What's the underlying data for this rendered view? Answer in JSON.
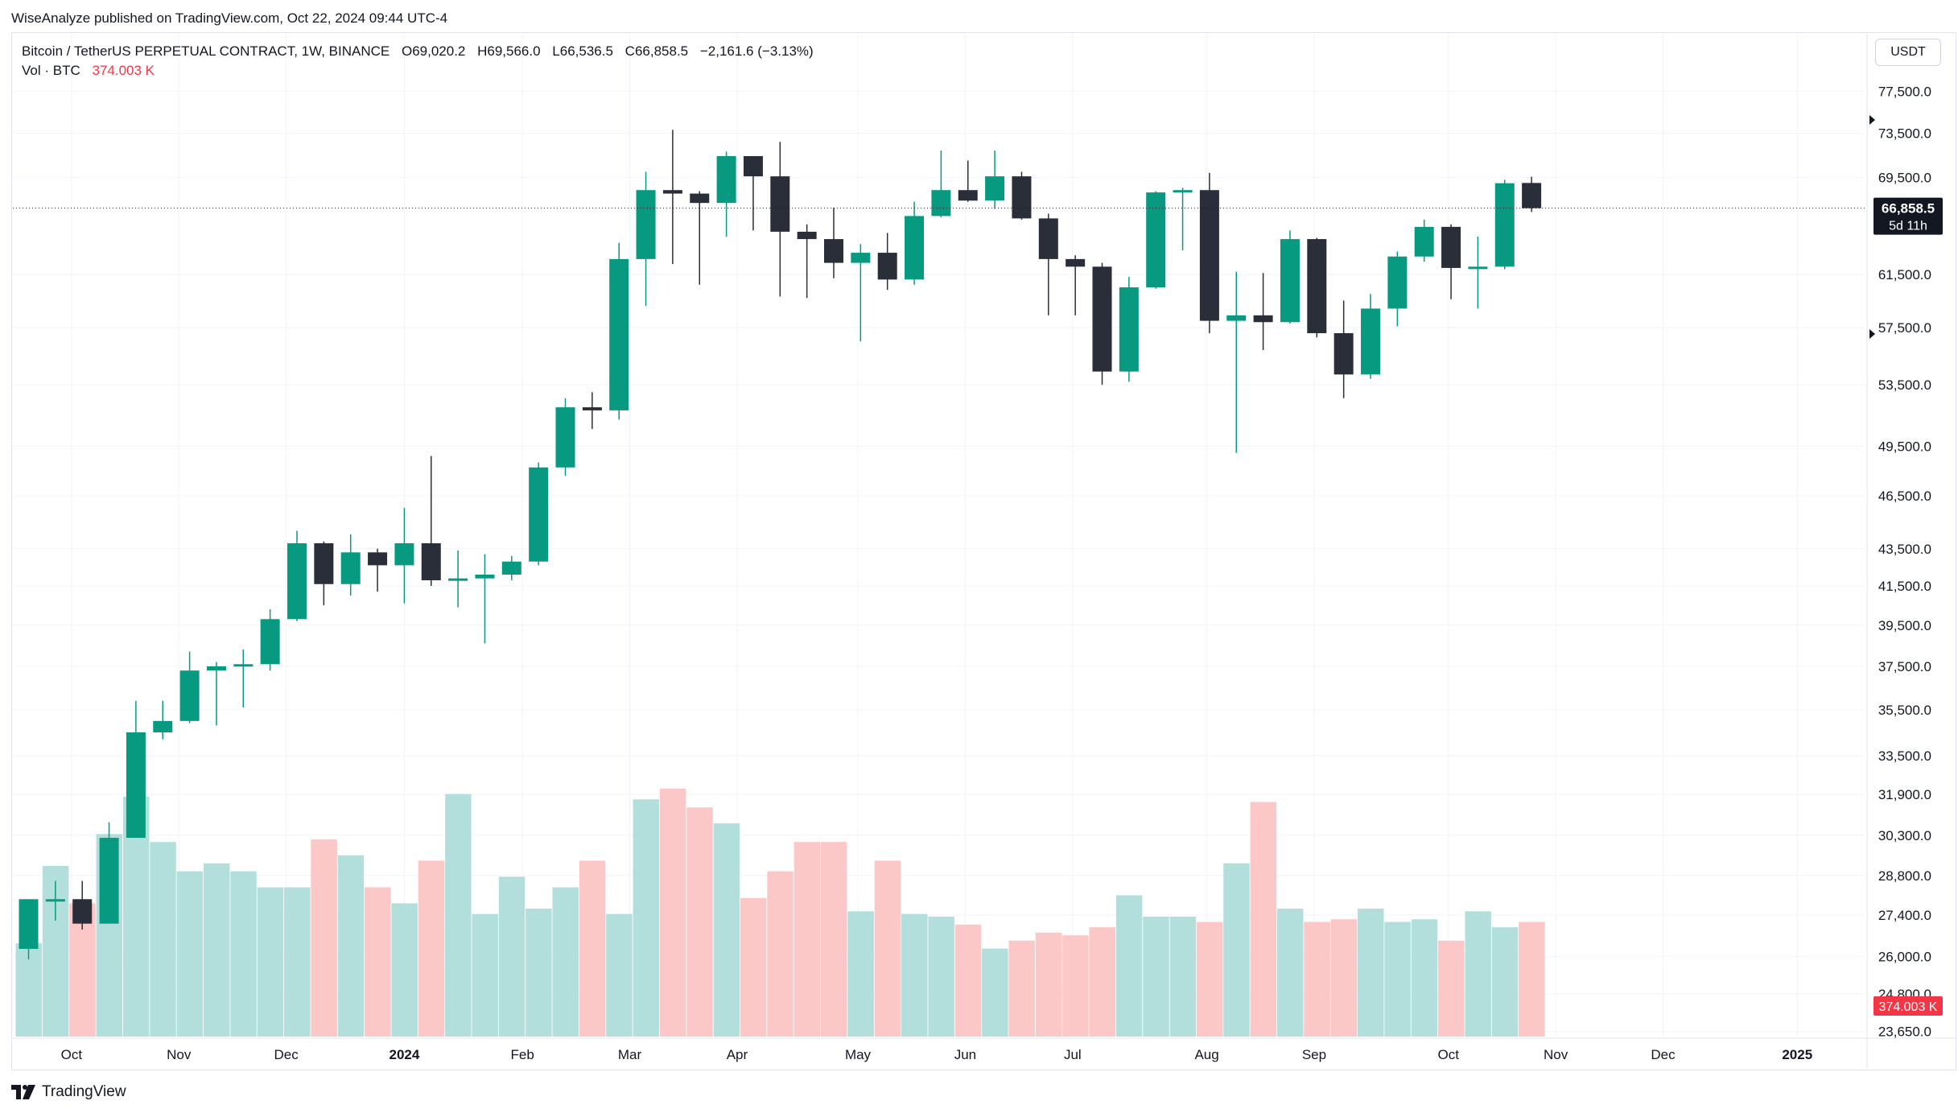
{
  "publisher": "WiseAnalyze published on TradingView.com, Oct 22, 2024 09:44 UTC-4",
  "legend": {
    "symbol": "Bitcoin / TetherUS PERPETUAL CONTRACT, 1W, BINANCE",
    "open": "O69,020.2",
    "high": "H69,566.0",
    "low": "L66,536.5",
    "close": "C66,858.5",
    "change": "−2,161.6 (−3.13%)",
    "vol_label": "Vol · BTC",
    "vol_value": "374.003 K"
  },
  "currency": "USDT",
  "footer": {
    "brand": "TradingView"
  },
  "colors": {
    "up": "#089981",
    "down": "#2a2e39",
    "vol_up": "#b2dfdb",
    "vol_down": "#fbc7c7",
    "last_bg": "#131722",
    "vol_badge": "#f23645"
  },
  "chart_data": {
    "type": "candlestick",
    "timeframe": "1W",
    "y_scale": "log",
    "ylim": [
      23500,
      80000
    ],
    "y_ticks": [
      {
        "v": 77500,
        "label": "77,500.0"
      },
      {
        "v": 73500,
        "label": "73,500.0"
      },
      {
        "v": 69500,
        "label": "69,500.0"
      },
      {
        "v": 61500,
        "label": "61,500.0"
      },
      {
        "v": 57500,
        "label": "57,500.0"
      },
      {
        "v": 53500,
        "label": "53,500.0"
      },
      {
        "v": 49500,
        "label": "49,500.0"
      },
      {
        "v": 46500,
        "label": "46,500.0"
      },
      {
        "v": 43500,
        "label": "43,500.0"
      },
      {
        "v": 41500,
        "label": "41,500.0"
      },
      {
        "v": 39500,
        "label": "39,500.0"
      },
      {
        "v": 37500,
        "label": "37,500.0"
      },
      {
        "v": 35500,
        "label": "35,500.0"
      },
      {
        "v": 33500,
        "label": "33,500.0"
      },
      {
        "v": 31900,
        "label": "31,900.0"
      },
      {
        "v": 30300,
        "label": "30,300.0"
      },
      {
        "v": 28800,
        "label": "28,800.0"
      },
      {
        "v": 27400,
        "label": "27,400.0"
      },
      {
        "v": 26000,
        "label": "26,000.0"
      },
      {
        "v": 24800,
        "label": "24,800.0"
      },
      {
        "v": 23650,
        "label": "23,650.0"
      }
    ],
    "x_ticks": [
      {
        "week": 1.6,
        "label": "Oct"
      },
      {
        "week": 5.6,
        "label": "Nov"
      },
      {
        "week": 9.6,
        "label": "Dec"
      },
      {
        "week": 14.0,
        "label": "2024"
      },
      {
        "week": 18.4,
        "label": "Feb"
      },
      {
        "week": 22.4,
        "label": "Mar"
      },
      {
        "week": 26.4,
        "label": "Apr"
      },
      {
        "week": 30.9,
        "label": "May"
      },
      {
        "week": 34.9,
        "label": "Jun"
      },
      {
        "week": 38.9,
        "label": "Jul"
      },
      {
        "week": 43.9,
        "label": "Aug"
      },
      {
        "week": 47.9,
        "label": "Sep"
      },
      {
        "week": 52.9,
        "label": "Oct"
      },
      {
        "week": 56.9,
        "label": "Nov"
      },
      {
        "week": 60.9,
        "label": "Dec"
      },
      {
        "week": 65.9,
        "label": "2025"
      }
    ],
    "candles": [
      {
        "o": 26250,
        "h": 27950,
        "l": 25900,
        "c": 27950,
        "v": 26.5
      },
      {
        "o": 27950,
        "h": 28600,
        "l": 27200,
        "c": 27950,
        "v": 29.4
      },
      {
        "o": 27950,
        "h": 28600,
        "l": 26900,
        "c": 27100,
        "v": 28.0
      },
      {
        "o": 27100,
        "h": 30800,
        "l": 27100,
        "c": 30200,
        "v": 30.6
      },
      {
        "o": 30200,
        "h": 35900,
        "l": 30200,
        "c": 34500,
        "v": 32.0
      },
      {
        "o": 34500,
        "h": 35900,
        "l": 34200,
        "c": 35000,
        "v": 30.3
      },
      {
        "o": 35000,
        "h": 38200,
        "l": 34900,
        "c": 37300,
        "v": 29.2
      },
      {
        "o": 37300,
        "h": 37700,
        "l": 34800,
        "c": 37500,
        "v": 29.5
      },
      {
        "o": 37500,
        "h": 38300,
        "l": 35600,
        "c": 37600,
        "v": 29.2
      },
      {
        "o": 37600,
        "h": 40300,
        "l": 37300,
        "c": 39800,
        "v": 28.6
      },
      {
        "o": 39800,
        "h": 44500,
        "l": 39700,
        "c": 43800,
        "v": 28.6
      },
      {
        "o": 43800,
        "h": 43900,
        "l": 40500,
        "c": 41600,
        "v": 30.4
      },
      {
        "o": 41600,
        "h": 44300,
        "l": 41000,
        "c": 43300,
        "v": 29.8
      },
      {
        "o": 43300,
        "h": 43500,
        "l": 41200,
        "c": 42600,
        "v": 28.6
      },
      {
        "o": 42600,
        "h": 45800,
        "l": 40600,
        "c": 43800,
        "v": 28.0
      },
      {
        "o": 43800,
        "h": 48900,
        "l": 41500,
        "c": 41800,
        "v": 29.6
      },
      {
        "o": 41800,
        "h": 43400,
        "l": 40400,
        "c": 41900,
        "v": 32.1
      },
      {
        "o": 41900,
        "h": 43200,
        "l": 38600,
        "c": 42100,
        "v": 27.6
      },
      {
        "o": 42100,
        "h": 43100,
        "l": 41800,
        "c": 42800,
        "v": 29.0
      },
      {
        "o": 42800,
        "h": 48500,
        "l": 42600,
        "c": 48200,
        "v": 27.8
      },
      {
        "o": 48200,
        "h": 52600,
        "l": 47700,
        "c": 52000,
        "v": 28.6
      },
      {
        "o": 52000,
        "h": 53000,
        "l": 50600,
        "c": 51800,
        "v": 29.6
      },
      {
        "o": 51800,
        "h": 64000,
        "l": 51200,
        "c": 62700,
        "v": 27.6
      },
      {
        "o": 62700,
        "h": 70000,
        "l": 59100,
        "c": 68400,
        "v": 31.9
      },
      {
        "o": 68400,
        "h": 73800,
        "l": 62300,
        "c": 68100,
        "v": 32.3
      },
      {
        "o": 68100,
        "h": 68300,
        "l": 60700,
        "c": 67300,
        "v": 31.6
      },
      {
        "o": 67300,
        "h": 71800,
        "l": 64500,
        "c": 71400,
        "v": 31.0
      },
      {
        "o": 71400,
        "h": 71400,
        "l": 65000,
        "c": 69600,
        "v": 28.2
      },
      {
        "o": 69600,
        "h": 72700,
        "l": 59800,
        "c": 64900,
        "v": 29.2
      },
      {
        "o": 64900,
        "h": 65500,
        "l": 59700,
        "c": 64300,
        "v": 30.3
      },
      {
        "o": 64300,
        "h": 66900,
        "l": 61200,
        "c": 62400,
        "v": 30.3
      },
      {
        "o": 62400,
        "h": 63900,
        "l": 56500,
        "c": 63200,
        "v": 27.7
      },
      {
        "o": 63200,
        "h": 64800,
        "l": 60300,
        "c": 61100,
        "v": 29.6
      },
      {
        "o": 61100,
        "h": 67400,
        "l": 60700,
        "c": 66200,
        "v": 27.6
      },
      {
        "o": 66200,
        "h": 71900,
        "l": 66100,
        "c": 68400,
        "v": 27.5
      },
      {
        "o": 68400,
        "h": 71000,
        "l": 67400,
        "c": 67500,
        "v": 27.2
      },
      {
        "o": 67500,
        "h": 71900,
        "l": 66800,
        "c": 69600,
        "v": 26.3
      },
      {
        "o": 69600,
        "h": 70000,
        "l": 65900,
        "c": 66000,
        "v": 26.6
      },
      {
        "o": 66000,
        "h": 66400,
        "l": 58400,
        "c": 62700,
        "v": 26.9
      },
      {
        "o": 62700,
        "h": 63000,
        "l": 58400,
        "c": 62100,
        "v": 26.8
      },
      {
        "o": 62100,
        "h": 62400,
        "l": 53500,
        "c": 54400,
        "v": 27.1
      },
      {
        "o": 54400,
        "h": 61300,
        "l": 53700,
        "c": 60500,
        "v": 28.3
      },
      {
        "o": 60500,
        "h": 68300,
        "l": 60400,
        "c": 68200,
        "v": 27.5
      },
      {
        "o": 68200,
        "h": 68600,
        "l": 63400,
        "c": 68400,
        "v": 27.5
      },
      {
        "o": 68400,
        "h": 69900,
        "l": 57100,
        "c": 58000,
        "v": 27.3
      },
      {
        "o": 58000,
        "h": 61700,
        "l": 49100,
        "c": 58400,
        "v": 29.5
      },
      {
        "o": 58400,
        "h": 61600,
        "l": 55900,
        "c": 57900,
        "v": 31.8
      },
      {
        "o": 57900,
        "h": 65000,
        "l": 57800,
        "c": 64300,
        "v": 27.8
      },
      {
        "o": 64300,
        "h": 64400,
        "l": 56800,
        "c": 57100,
        "v": 27.3
      },
      {
        "o": 57100,
        "h": 59500,
        "l": 52600,
        "c": 54200,
        "v": 27.4
      },
      {
        "o": 54200,
        "h": 60000,
        "l": 53900,
        "c": 58900,
        "v": 27.8
      },
      {
        "o": 58900,
        "h": 63300,
        "l": 57600,
        "c": 62900,
        "v": 27.3
      },
      {
        "o": 62900,
        "h": 65900,
        "l": 62500,
        "c": 65300,
        "v": 27.4
      },
      {
        "o": 65300,
        "h": 65500,
        "l": 59600,
        "c": 62000,
        "v": 26.6
      },
      {
        "o": 62000,
        "h": 64500,
        "l": 58900,
        "c": 62100,
        "v": 27.7
      },
      {
        "o": 62100,
        "h": 69300,
        "l": 61900,
        "c": 69000,
        "v": 27.1
      },
      {
        "o": 69020.2,
        "h": 69566.0,
        "l": 66536.5,
        "c": 66858.5,
        "v": 27.3
      }
    ],
    "volume_axis_max_label": "374.003 K",
    "last_price": {
      "value": 66858.5,
      "label": "66,858.5",
      "countdown": "5d 11h"
    },
    "volume_last": {
      "label": "374.003 K"
    }
  }
}
